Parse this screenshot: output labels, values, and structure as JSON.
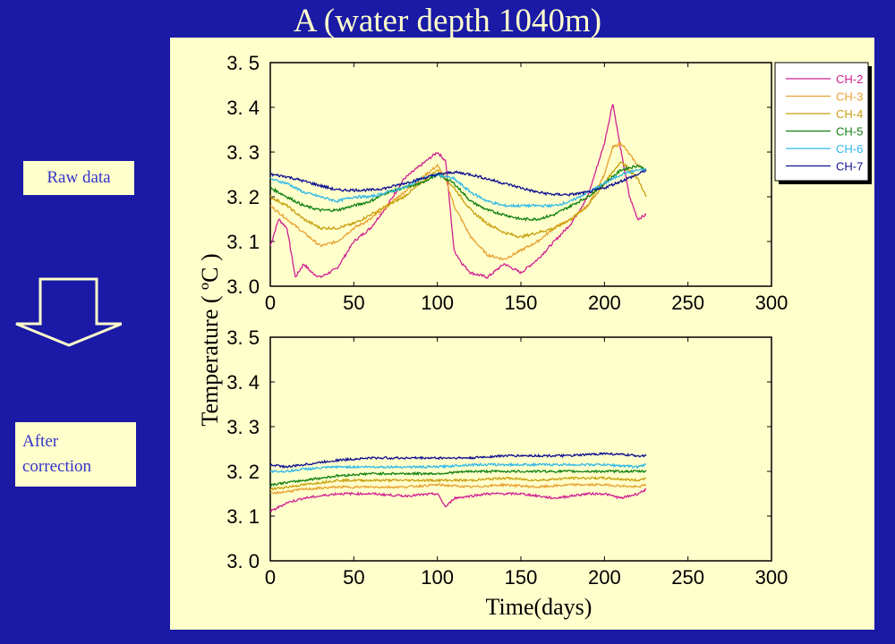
{
  "title": "A (water depth 1040m)",
  "labels": {
    "raw": "Raw data",
    "after_line1": "After",
    "after_line2": "correction"
  },
  "colors": {
    "background": "#1a1aa6",
    "panel": "#ffffcc",
    "label_text": "#3333cc"
  },
  "icons": {
    "arrow": "hollow-down-arrow-icon"
  },
  "chart_data": [
    {
      "type": "line",
      "panel": "raw",
      "xlabel": "",
      "ylabel": "Temperature ( ºC )",
      "xlim": [
        0,
        300
      ],
      "ylim": [
        3.0,
        3.5
      ],
      "xticks": [
        "0",
        "50",
        "100",
        "150",
        "200",
        "250",
        "300"
      ],
      "yticks": [
        "3. 0",
        "3. 1",
        "3. 2",
        "3. 3",
        "3. 4",
        "3. 5"
      ],
      "legend_position": "top-right",
      "series": [
        {
          "name": "CH-2",
          "color": "#d02090",
          "x": [
            0,
            5,
            10,
            15,
            20,
            25,
            30,
            40,
            50,
            60,
            70,
            80,
            90,
            100,
            105,
            110,
            115,
            120,
            130,
            140,
            150,
            160,
            170,
            180,
            190,
            200,
            205,
            210,
            215,
            220,
            225
          ],
          "values": [
            3.09,
            3.15,
            3.13,
            3.02,
            3.05,
            3.03,
            3.02,
            3.04,
            3.1,
            3.13,
            3.18,
            3.24,
            3.27,
            3.3,
            3.28,
            3.08,
            3.05,
            3.03,
            3.02,
            3.05,
            3.03,
            3.06,
            3.1,
            3.14,
            3.2,
            3.32,
            3.41,
            3.3,
            3.2,
            3.15,
            3.16
          ]
        },
        {
          "name": "CH-3",
          "color": "#e8a030",
          "x": [
            0,
            10,
            20,
            30,
            40,
            50,
            60,
            70,
            80,
            90,
            100,
            105,
            110,
            120,
            130,
            140,
            150,
            160,
            170,
            180,
            190,
            200,
            205,
            210,
            220,
            225
          ],
          "values": [
            3.18,
            3.15,
            3.12,
            3.09,
            3.1,
            3.13,
            3.15,
            3.18,
            3.21,
            3.24,
            3.27,
            3.24,
            3.18,
            3.11,
            3.07,
            3.06,
            3.08,
            3.1,
            3.13,
            3.15,
            3.18,
            3.25,
            3.31,
            3.32,
            3.27,
            3.26
          ]
        },
        {
          "name": "CH-4",
          "color": "#c8a010",
          "x": [
            0,
            10,
            20,
            30,
            40,
            50,
            60,
            70,
            80,
            90,
            100,
            110,
            120,
            130,
            140,
            150,
            160,
            170,
            180,
            190,
            200,
            210,
            220,
            225
          ],
          "values": [
            3.2,
            3.18,
            3.15,
            3.13,
            3.13,
            3.14,
            3.16,
            3.18,
            3.2,
            3.23,
            3.26,
            3.22,
            3.17,
            3.14,
            3.12,
            3.11,
            3.12,
            3.13,
            3.15,
            3.18,
            3.23,
            3.28,
            3.24,
            3.2
          ]
        },
        {
          "name": "CH-5",
          "color": "#108010",
          "x": [
            0,
            10,
            20,
            30,
            40,
            50,
            60,
            70,
            80,
            90,
            100,
            110,
            120,
            130,
            140,
            150,
            160,
            170,
            180,
            190,
            200,
            210,
            220,
            225
          ],
          "values": [
            3.22,
            3.2,
            3.18,
            3.17,
            3.17,
            3.18,
            3.19,
            3.21,
            3.22,
            3.23,
            3.25,
            3.23,
            3.19,
            3.17,
            3.16,
            3.15,
            3.15,
            3.16,
            3.18,
            3.2,
            3.23,
            3.26,
            3.27,
            3.26
          ]
        },
        {
          "name": "CH-6",
          "color": "#30b8e8",
          "x": [
            0,
            10,
            20,
            30,
            40,
            50,
            60,
            70,
            80,
            90,
            100,
            110,
            120,
            130,
            140,
            150,
            160,
            170,
            180,
            190,
            200,
            210,
            220,
            225
          ],
          "values": [
            3.24,
            3.23,
            3.21,
            3.2,
            3.19,
            3.2,
            3.2,
            3.21,
            3.22,
            3.24,
            3.25,
            3.24,
            3.21,
            3.19,
            3.18,
            3.18,
            3.18,
            3.18,
            3.19,
            3.21,
            3.23,
            3.25,
            3.26,
            3.26
          ]
        },
        {
          "name": "CH-7",
          "color": "#101090",
          "x": [
            0,
            10,
            20,
            30,
            40,
            50,
            60,
            70,
            80,
            90,
            100,
            110,
            120,
            130,
            140,
            150,
            160,
            170,
            180,
            190,
            200,
            210,
            220,
            225
          ],
          "values": [
            3.25,
            3.245,
            3.235,
            3.225,
            3.215,
            3.215,
            3.215,
            3.22,
            3.23,
            3.24,
            3.25,
            3.255,
            3.25,
            3.24,
            3.23,
            3.22,
            3.21,
            3.205,
            3.205,
            3.21,
            3.22,
            3.235,
            3.25,
            3.26
          ]
        }
      ]
    },
    {
      "type": "line",
      "panel": "corrected",
      "xlabel": "Time(days)",
      "ylabel": "",
      "xlim": [
        0,
        300
      ],
      "ylim": [
        3.0,
        3.5
      ],
      "xticks": [
        "0",
        "50",
        "100",
        "150",
        "200",
        "250",
        "300"
      ],
      "yticks": [
        "3. 0",
        "3. 1",
        "3. 2",
        "3. 3",
        "3. 4",
        "3. 5"
      ],
      "series": [
        {
          "name": "CH-2",
          "color": "#d02090",
          "x": [
            0,
            10,
            20,
            40,
            60,
            80,
            100,
            105,
            110,
            130,
            150,
            170,
            190,
            200,
            210,
            220,
            225
          ],
          "values": [
            3.11,
            3.13,
            3.14,
            3.15,
            3.15,
            3.145,
            3.15,
            3.12,
            3.14,
            3.15,
            3.15,
            3.14,
            3.15,
            3.15,
            3.14,
            3.15,
            3.16
          ]
        },
        {
          "name": "CH-3",
          "color": "#e8a030",
          "x": [
            0,
            10,
            20,
            40,
            60,
            80,
            100,
            120,
            140,
            160,
            180,
            200,
            220,
            225
          ],
          "values": [
            3.15,
            3.155,
            3.16,
            3.165,
            3.165,
            3.165,
            3.17,
            3.165,
            3.17,
            3.165,
            3.17,
            3.17,
            3.165,
            3.17
          ]
        },
        {
          "name": "CH-4",
          "color": "#c8a010",
          "x": [
            0,
            10,
            20,
            40,
            60,
            80,
            100,
            120,
            140,
            160,
            180,
            200,
            220,
            225
          ],
          "values": [
            3.16,
            3.165,
            3.17,
            3.18,
            3.18,
            3.18,
            3.18,
            3.18,
            3.185,
            3.18,
            3.185,
            3.185,
            3.18,
            3.185
          ]
        },
        {
          "name": "CH-5",
          "color": "#108010",
          "x": [
            0,
            10,
            20,
            40,
            60,
            80,
            100,
            120,
            140,
            160,
            180,
            200,
            220,
            225
          ],
          "values": [
            3.17,
            3.175,
            3.18,
            3.19,
            3.195,
            3.195,
            3.195,
            3.2,
            3.2,
            3.2,
            3.2,
            3.2,
            3.2,
            3.2
          ]
        },
        {
          "name": "CH-6",
          "color": "#30b8e8",
          "x": [
            0,
            10,
            20,
            40,
            60,
            80,
            100,
            120,
            140,
            160,
            180,
            200,
            220,
            225
          ],
          "values": [
            3.2,
            3.2,
            3.205,
            3.21,
            3.21,
            3.21,
            3.21,
            3.215,
            3.215,
            3.215,
            3.215,
            3.215,
            3.21,
            3.215
          ]
        },
        {
          "name": "CH-7",
          "color": "#101090",
          "x": [
            0,
            10,
            20,
            40,
            60,
            80,
            100,
            120,
            140,
            160,
            180,
            200,
            220,
            225
          ],
          "values": [
            3.215,
            3.21,
            3.215,
            3.225,
            3.23,
            3.23,
            3.23,
            3.23,
            3.235,
            3.235,
            3.235,
            3.24,
            3.235,
            3.235
          ]
        }
      ]
    }
  ]
}
